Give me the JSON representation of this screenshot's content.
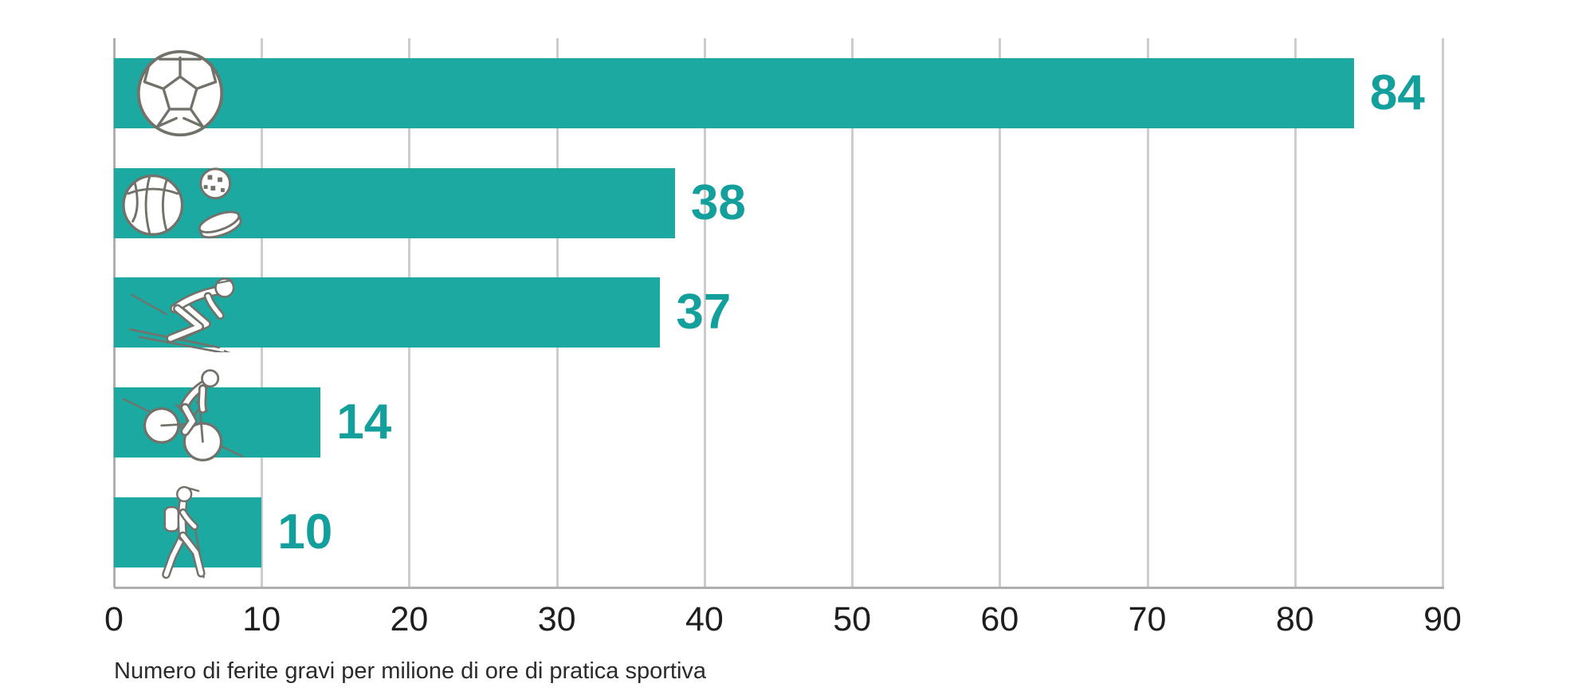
{
  "chart_data": {
    "type": "bar",
    "orientation": "horizontal",
    "xlabel": "Numero di ferite gravi per milione di ore di pratica sportiva",
    "xlim": [
      0,
      90
    ],
    "x_ticks": [
      0,
      10,
      20,
      30,
      40,
      50,
      60,
      70,
      80,
      90
    ],
    "grid": true,
    "legend": false,
    "rows": [
      {
        "icon": "soccer-ball-icon",
        "value": 84
      },
      {
        "icon": "basketball-floorball-puck-icons",
        "value": 38
      },
      {
        "icon": "downhill-skier-icon",
        "value": 37
      },
      {
        "icon": "mountain-biker-icon",
        "value": 14
      },
      {
        "icon": "hiker-icon",
        "value": 10
      }
    ],
    "colors": {
      "bar": "#1BA9A2",
      "value_label": "#13A09C",
      "gridline": "#CDCDCD",
      "axis": "#AFAFAF",
      "tick_label": "#1E1E1E",
      "caption": "#2B2B2B",
      "icon_outline": "#72726B"
    }
  }
}
